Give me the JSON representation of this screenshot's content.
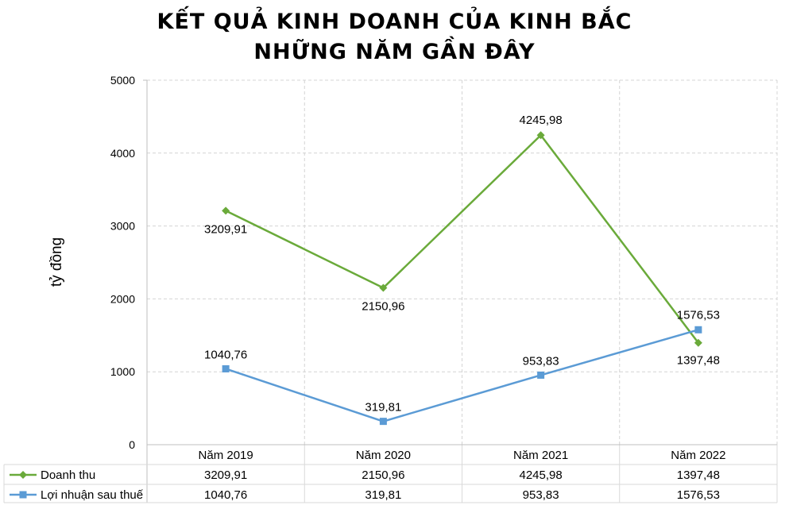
{
  "title_line1": "KẾT QUẢ KINH DOANH CỦA KINH BẮC",
  "title_line2": "NHỮNG NĂM GẦN ĐÂY",
  "chart_data": {
    "type": "line",
    "title": "KẾT QUẢ KINH DOANH CỦA KINH BẮC NHỮNG NĂM GẦN ĐÂY",
    "ylabel": "tỷ đồng",
    "xlabel": "",
    "categories": [
      "Năm 2019",
      "Năm 2020",
      "Năm 2021",
      "Năm 2022"
    ],
    "ylim": [
      0,
      5000
    ],
    "yticks": [
      0,
      1000,
      2000,
      3000,
      4000,
      5000
    ],
    "grid": true,
    "legend": "data-table",
    "series": [
      {
        "name": "Doanh thu",
        "color": "#6aaa3a",
        "marker": "diamond",
        "values": [
          3209.91,
          2150.96,
          4245.98,
          1397.48
        ],
        "labels": [
          "3209,91",
          "2150,96",
          "4245,98",
          "1397,48"
        ]
      },
      {
        "name": "Lợi nhuận sau thuế",
        "color": "#5b9bd5",
        "marker": "square",
        "values": [
          1040.76,
          319.81,
          953.83,
          1576.53
        ],
        "labels": [
          "1040,76",
          "319,81",
          "953,83",
          "1576,53"
        ]
      }
    ]
  }
}
